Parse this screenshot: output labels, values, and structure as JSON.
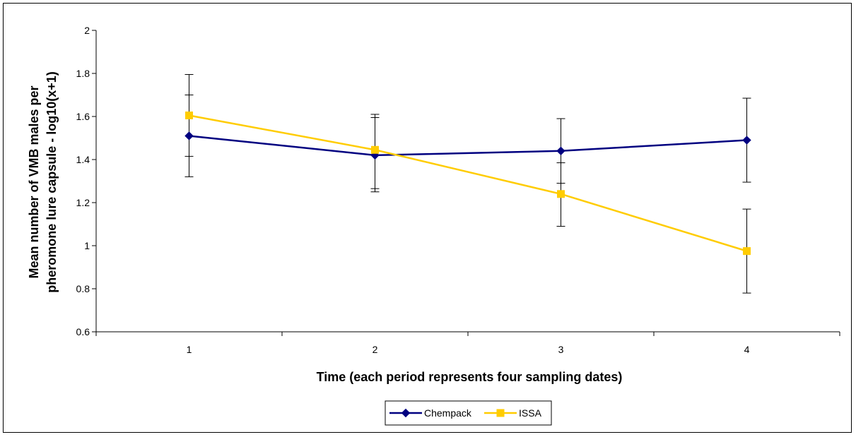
{
  "chart_data": {
    "type": "line",
    "title": "",
    "xlabel": "Time (each period represents four sampling dates)",
    "ylabel": [
      "Mean number of VMB males per",
      "pheromone lure capsule - log10(x+1)"
    ],
    "categories": [
      "1",
      "2",
      "3",
      "4"
    ],
    "ylim": [
      0.6,
      2
    ],
    "yticks": [
      "0.6",
      "0.8",
      "1",
      "1.2",
      "1.4",
      "1.6",
      "1.8",
      "2"
    ],
    "grid": false,
    "legend_position": "bottom",
    "series": [
      {
        "name": "Chempack",
        "color": "#000080",
        "marker": "diamond",
        "values": [
          1.51,
          1.42,
          1.44,
          1.49
        ],
        "err_low": [
          1.32,
          1.25,
          1.29,
          1.295
        ],
        "err_high": [
          1.7,
          1.595,
          1.59,
          1.685
        ]
      },
      {
        "name": "ISSA",
        "color": "#FFCC00",
        "marker": "square",
        "values": [
          1.605,
          1.445,
          1.24,
          0.975
        ],
        "err_low": [
          1.415,
          1.265,
          1.09,
          0.78
        ],
        "err_high": [
          1.795,
          1.61,
          1.385,
          1.17
        ]
      }
    ]
  }
}
